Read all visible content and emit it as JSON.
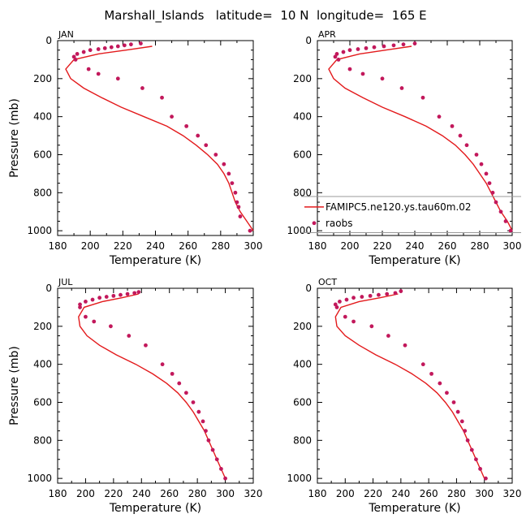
{
  "figure_title": "Marshall_Islands   latitude=  10 N  longitude=  165 E",
  "chart_data": [
    {
      "type": "line",
      "title": "JAN",
      "xlabel": "Temperature (K)",
      "ylabel": "Pressure (mb)",
      "xlim": [
        180,
        300
      ],
      "ylim": [
        0,
        1025
      ],
      "y_inverted": true,
      "xticks": [
        "180",
        "200",
        "220",
        "240",
        "260",
        "280",
        "300"
      ],
      "yticks": [
        "0",
        "200",
        "400",
        "600",
        "800",
        "1000"
      ],
      "series": [
        {
          "name": "FAMIPC5.ne120.ys.tau60m.02",
          "style": "line",
          "color": "#e31a1c",
          "x": [
            300,
            296,
            292,
            289,
            287,
            285,
            282,
            278,
            272,
            265,
            257,
            247,
            233,
            219,
            207,
            196,
            188,
            185,
            190,
            205,
            222,
            238
          ],
          "y": [
            1000,
            950,
            900,
            850,
            800,
            750,
            700,
            650,
            600,
            550,
            500,
            450,
            400,
            350,
            300,
            250,
            200,
            150,
            100,
            70,
            50,
            30
          ]
        },
        {
          "name": "raobs",
          "style": "points",
          "color": "#c2185b",
          "x": [
            298,
            292,
            291,
            290,
            289,
            287,
            285,
            282,
            277,
            271,
            266,
            259,
            250,
            244,
            232,
            217,
            205,
            199,
            191,
            190,
            192,
            196,
            200,
            205,
            209,
            213,
            217,
            221,
            225,
            231
          ],
          "y": [
            1000,
            925,
            875,
            850,
            800,
            750,
            700,
            650,
            600,
            550,
            500,
            450,
            400,
            300,
            250,
            200,
            175,
            150,
            100,
            85,
            70,
            60,
            50,
            45,
            40,
            35,
            30,
            25,
            20,
            15
          ]
        }
      ]
    },
    {
      "type": "line",
      "title": "APR",
      "xlabel": "Temperature (K)",
      "ylabel": "",
      "xlim": [
        180,
        300
      ],
      "ylim": [
        0,
        1025
      ],
      "y_inverted": true,
      "xticks": [
        "180",
        "200",
        "220",
        "240",
        "260",
        "280",
        "300"
      ],
      "yticks": [
        "0",
        "200",
        "400",
        "600",
        "800",
        "1000"
      ],
      "legend": {
        "position": "bottom-right",
        "entries": [
          "FAMIPC5.ne120.ys.tau60m.02",
          "raobs"
        ]
      },
      "series": [
        {
          "name": "FAMIPC5.ne120.ys.tau60m.02",
          "style": "line",
          "color": "#e31a1c",
          "x": [
            300,
            297,
            293,
            290,
            287,
            284,
            280,
            276,
            271,
            265,
            257,
            247,
            234,
            220,
            208,
            197,
            190,
            187,
            192,
            206,
            222,
            238
          ],
          "y": [
            1000,
            950,
            900,
            850,
            800,
            750,
            700,
            650,
            600,
            550,
            500,
            450,
            400,
            350,
            300,
            250,
            200,
            150,
            100,
            70,
            50,
            30
          ]
        },
        {
          "name": "raobs",
          "style": "points",
          "color": "#c2185b",
          "x": [
            299,
            296,
            293,
            290,
            288,
            286,
            284,
            281,
            278,
            272,
            268,
            263,
            255,
            245,
            232,
            220,
            208,
            200,
            193,
            191,
            192,
            196,
            200,
            205,
            210,
            215,
            221,
            227,
            233,
            240
          ],
          "y": [
            1000,
            950,
            900,
            850,
            800,
            750,
            700,
            650,
            600,
            550,
            500,
            450,
            400,
            300,
            250,
            200,
            175,
            150,
            100,
            85,
            70,
            60,
            50,
            45,
            40,
            35,
            30,
            25,
            20,
            15
          ]
        }
      ]
    },
    {
      "type": "line",
      "title": "JUL",
      "xlabel": "Temperature (K)",
      "ylabel": "Pressure (mb)",
      "xlim": [
        180,
        320
      ],
      "ylim": [
        0,
        1025
      ],
      "y_inverted": true,
      "xticks": [
        "180",
        "200",
        "220",
        "240",
        "260",
        "280",
        "300",
        "320"
      ],
      "yticks": [
        "0",
        "200",
        "400",
        "600",
        "800",
        "1000"
      ],
      "series": [
        {
          "name": "FAMIPC5.ne120.ys.tau60m.02",
          "style": "line",
          "color": "#e31a1c",
          "x": [
            300,
            297,
            294,
            291,
            288,
            285,
            281,
            277,
            272,
            266,
            258,
            248,
            236,
            222,
            210,
            201,
            196,
            195,
            199,
            212,
            226,
            238
          ],
          "y": [
            1000,
            950,
            900,
            850,
            800,
            750,
            700,
            650,
            600,
            550,
            500,
            450,
            400,
            350,
            300,
            250,
            200,
            150,
            100,
            70,
            50,
            30
          ]
        },
        {
          "name": "raobs",
          "style": "points",
          "color": "#c2185b",
          "x": [
            300,
            297,
            294,
            291,
            288,
            286,
            284,
            281,
            277,
            272,
            267,
            262,
            255,
            243,
            231,
            218,
            206,
            200,
            196,
            196,
            200,
            205,
            210,
            215,
            220,
            225,
            230,
            235,
            238
          ],
          "y": [
            1000,
            950,
            900,
            850,
            800,
            750,
            700,
            650,
            600,
            550,
            500,
            450,
            400,
            300,
            250,
            200,
            175,
            150,
            100,
            85,
            70,
            60,
            50,
            45,
            40,
            35,
            30,
            25,
            20
          ]
        }
      ]
    },
    {
      "type": "line",
      "title": "OCT",
      "xlabel": "Temperature (K)",
      "ylabel": "",
      "xlim": [
        180,
        320
      ],
      "ylim": [
        0,
        1025
      ],
      "y_inverted": true,
      "xticks": [
        "180",
        "200",
        "220",
        "240",
        "260",
        "280",
        "300",
        "320"
      ],
      "yticks": [
        "0",
        "200",
        "400",
        "600",
        "800",
        "1000"
      ],
      "series": [
        {
          "name": "FAMIPC5.ne120.ys.tau60m.02",
          "style": "line",
          "color": "#e31a1c",
          "x": [
            300,
            297,
            294,
            291,
            288,
            285,
            281,
            277,
            272,
            266,
            258,
            248,
            236,
            222,
            210,
            200,
            194,
            193,
            197,
            210,
            225,
            238
          ],
          "y": [
            1000,
            950,
            900,
            850,
            800,
            750,
            700,
            650,
            600,
            550,
            500,
            450,
            400,
            350,
            300,
            250,
            200,
            150,
            100,
            70,
            50,
            30
          ]
        },
        {
          "name": "raobs",
          "style": "points",
          "color": "#c2185b",
          "x": [
            301,
            297,
            294,
            291,
            288,
            286,
            284,
            281,
            278,
            273,
            268,
            262,
            256,
            243,
            231,
            219,
            206,
            200,
            194,
            193,
            196,
            201,
            206,
            212,
            218,
            224,
            230,
            236,
            240
          ],
          "y": [
            1000,
            950,
            900,
            850,
            800,
            750,
            700,
            650,
            600,
            550,
            500,
            450,
            400,
            300,
            250,
            200,
            175,
            150,
            100,
            85,
            70,
            60,
            50,
            45,
            40,
            35,
            30,
            25,
            15
          ]
        }
      ]
    }
  ]
}
